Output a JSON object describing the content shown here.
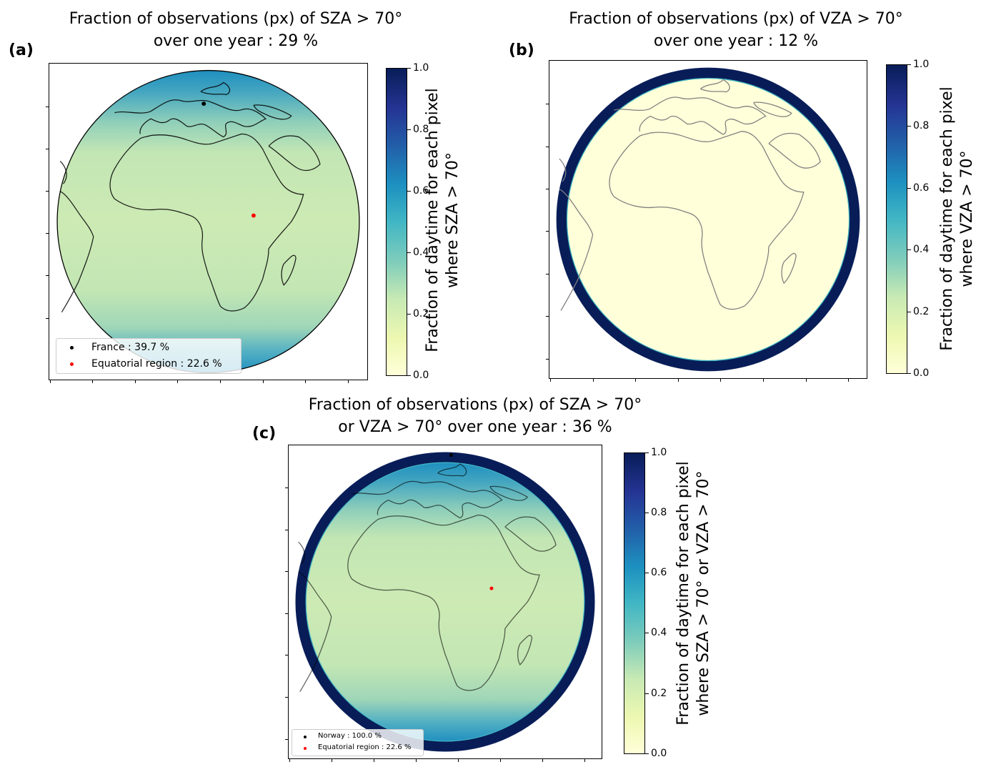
{
  "panels": [
    {
      "label": "(a)",
      "title_line1": "Fraction of observations (px) of SZA > 70°",
      "title_line2": "over one year : 29 %",
      "colorbar_label_line1": "Fraction of daytime for each pixel",
      "colorbar_label_line2": "where SZA > 70°",
      "legend": [
        {
          "text": "France : 39.7 %",
          "color": "#000000"
        },
        {
          "text": "Equatorial region : 22.6 %",
          "color": "#ff0000"
        }
      ]
    },
    {
      "label": "(b)",
      "title_line1": "Fraction of observations (px) of VZA > 70°",
      "title_line2": "over one year : 12 %",
      "colorbar_label_line1": "Fraction of daytime for each pixel",
      "colorbar_label_line2": "where VZA > 70°"
    },
    {
      "label": "(c)",
      "title_line1": "Fraction of observations (px) of SZA > 70°",
      "title_line2": "or VZA > 70° over one year : 36 %",
      "colorbar_label_line1": "Fraction of daytime for each pixel",
      "colorbar_label_line2": "where SZA > 70° or VZA > 70°",
      "legend": [
        {
          "text": "Norway : 100.0 %",
          "color": "#000000"
        },
        {
          "text": "Equatorial region : 22.6 %",
          "color": "#ff0000"
        }
      ]
    }
  ],
  "colorbar_ticks": [
    "0.0",
    "0.2",
    "0.4",
    "0.6",
    "0.8",
    "1.0"
  ],
  "chart_data": [
    {
      "type": "heatmap",
      "projection": "geostationary disk (Africa/Europe)",
      "colormap": "YlGnBu",
      "colorbar_range": [
        0.0,
        1.0
      ],
      "overall_fraction_percent": 29,
      "points": [
        {
          "name": "France",
          "value_percent": 39.7,
          "color": "#000000"
        },
        {
          "name": "Equatorial region",
          "value_percent": 22.6,
          "color": "#ff0000"
        }
      ],
      "legend_position": "lower-left"
    },
    {
      "type": "heatmap",
      "projection": "geostationary disk (Africa/Europe)",
      "colormap": "YlGnBu",
      "colorbar_range": [
        0.0,
        1.0
      ],
      "overall_fraction_percent": 12
    },
    {
      "type": "heatmap",
      "projection": "geostationary disk (Africa/Europe)",
      "colormap": "YlGnBu",
      "colorbar_range": [
        0.0,
        1.0
      ],
      "overall_fraction_percent": 36,
      "points": [
        {
          "name": "Norway",
          "value_percent": 100.0,
          "color": "#000000"
        },
        {
          "name": "Equatorial region",
          "value_percent": 22.6,
          "color": "#ff0000"
        }
      ],
      "legend_position": "lower-left"
    }
  ]
}
